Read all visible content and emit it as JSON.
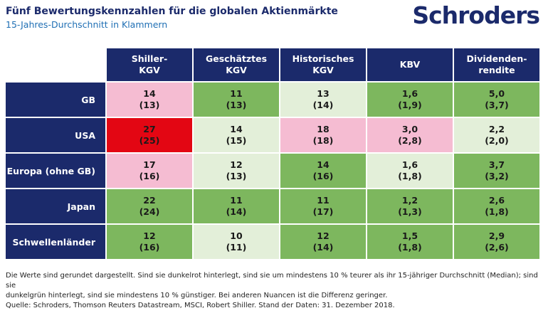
{
  "header": {
    "title": "Fünf Bewertungskennzahlen für die globalen Aktienmärkte",
    "subtitle": "15-Jahres-Durchschnitt in Klammern",
    "logo": "Schroders"
  },
  "table": {
    "columns": [
      [
        "Shiller-",
        "KGV"
      ],
      [
        "Geschätztes",
        "KGV"
      ],
      [
        "Historisches",
        "KGV"
      ],
      [
        "KBV"
      ],
      [
        "Dividenden-",
        "rendite"
      ]
    ],
    "rows": [
      {
        "label": "GB",
        "cells": [
          {
            "value": "14",
            "average": "(13)",
            "color": "#f5bcd2"
          },
          {
            "value": "11",
            "average": "(13)",
            "color": "#7db75e"
          },
          {
            "value": "13",
            "average": "(14)",
            "color": "#e3efd9"
          },
          {
            "value": "1,6",
            "average": "(1,9)",
            "color": "#7db75e"
          },
          {
            "value": "5,0",
            "average": "(3,7)",
            "color": "#7db75e"
          }
        ]
      },
      {
        "label": "USA",
        "cells": [
          {
            "value": "27",
            "average": "(25)",
            "color": "#e30613"
          },
          {
            "value": "14",
            "average": "(15)",
            "color": "#e3efd9"
          },
          {
            "value": "18",
            "average": "(18)",
            "color": "#f5bcd2"
          },
          {
            "value": "3,0",
            "average": "(2,8)",
            "color": "#f5bcd2"
          },
          {
            "value": "2,2",
            "average": "(2,0)",
            "color": "#e3efd9"
          }
        ]
      },
      {
        "label": "Europa (ohne GB)",
        "cells": [
          {
            "value": "17",
            "average": "(16)",
            "color": "#f5bcd2"
          },
          {
            "value": "12",
            "average": "(13)",
            "color": "#e3efd9"
          },
          {
            "value": "14",
            "average": "(16)",
            "color": "#7db75e"
          },
          {
            "value": "1,6",
            "average": "(1,8)",
            "color": "#e3efd9"
          },
          {
            "value": "3,7",
            "average": "(3,2)",
            "color": "#7db75e"
          }
        ]
      },
      {
        "label": "Japan",
        "cells": [
          {
            "value": "22",
            "average": "(24)",
            "color": "#7db75e"
          },
          {
            "value": "11",
            "average": "(14)",
            "color": "#7db75e"
          },
          {
            "value": "11",
            "average": "(17)",
            "color": "#7db75e"
          },
          {
            "value": "1,2",
            "average": "(1,3)",
            "color": "#7db75e"
          },
          {
            "value": "2,6",
            "average": "(1,8)",
            "color": "#7db75e"
          }
        ]
      },
      {
        "label": "Schwellenländer",
        "cells": [
          {
            "value": "12",
            "average": "(16)",
            "color": "#7db75e"
          },
          {
            "value": "10",
            "average": "(11)",
            "color": "#e3efd9"
          },
          {
            "value": "12",
            "average": "(14)",
            "color": "#7db75e"
          },
          {
            "value": "1,5",
            "average": "(1,8)",
            "color": "#7db75e"
          },
          {
            "value": "2,9",
            "average": "(2,6)",
            "color": "#7db75e"
          }
        ]
      }
    ]
  },
  "footer": {
    "lines": [
      "Die Werte sind gerundet dargestellt. Sind sie dunkelrot hinterlegt, sind sie um mindestens 10 % teurer als ihr 15-jähriger Durchschnitt (Median); sind sie",
      "dunkelgrün hinterlegt, sind sie mindestens 10 % günstiger. Bei anderen Nuancen ist die Differenz geringer.",
      "Quelle: Schroders, Thomson Reuters Datastream, MSCI, Robert Shiller. Stand der Daten: 31. Dezember 2018."
    ]
  }
}
